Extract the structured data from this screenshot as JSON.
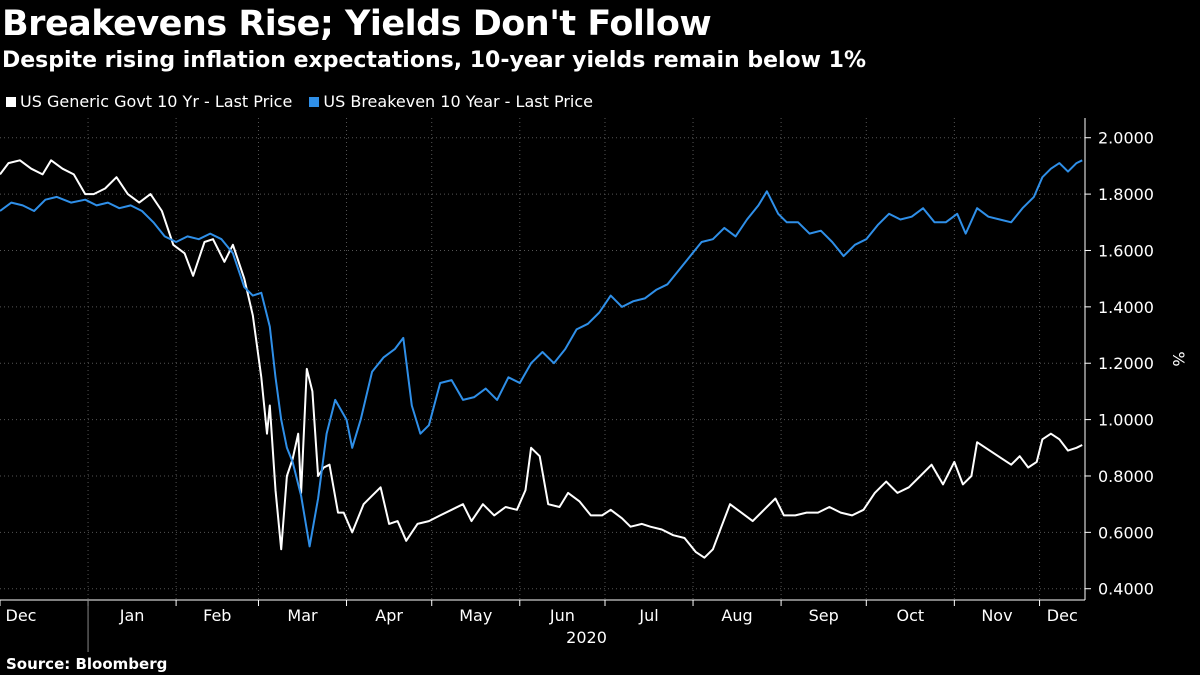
{
  "header": {
    "title": "Breakevens Rise; Yields Don't Follow",
    "subtitle": "Despite rising inflation expectations, 10-year yields remain below 1%"
  },
  "footer": {
    "source": "Source: Bloomberg"
  },
  "colors": {
    "background": "#000000",
    "yield_line": "#ffffff",
    "breakeven_line": "#2f8fe8",
    "grid": "#555555"
  },
  "chart_data": {
    "type": "line",
    "ylabel": "%",
    "ylim": [
      0.36,
      2.07
    ],
    "yticks": [
      "2.0000",
      "1.8000",
      "1.6000",
      "1.4000",
      "1.2000",
      "1.0000",
      "0.8000",
      "0.6000",
      "0.4000"
    ],
    "ytick_values": [
      2.0,
      1.8,
      1.6,
      1.4,
      1.2,
      1.0,
      0.8,
      0.6,
      0.4
    ],
    "xlim": [
      "2019-12-01",
      "2020-12-17"
    ],
    "month_labels": [
      "Dec",
      "Jan",
      "Feb",
      "Mar",
      "Apr",
      "May",
      "Jun",
      "Jul",
      "Aug",
      "Sep",
      "Oct",
      "Nov",
      "Dec"
    ],
    "month_dates": [
      "2019-12-01",
      "2020-01-01",
      "2020-02-01",
      "2020-03-01",
      "2020-04-01",
      "2020-05-01",
      "2020-06-01",
      "2020-07-01",
      "2020-08-01",
      "2020-09-01",
      "2020-10-01",
      "2020-11-01",
      "2020-12-01"
    ],
    "year_label": "2020",
    "grid": true,
    "legend_position": "top-left",
    "series": [
      {
        "name": "US Generic Govt 10 Yr - Last Price",
        "color": "#ffffff",
        "points": [
          [
            "2019-12-01",
            1.87
          ],
          [
            "2019-12-04",
            1.91
          ],
          [
            "2019-12-08",
            1.92
          ],
          [
            "2019-12-12",
            1.89
          ],
          [
            "2019-12-16",
            1.87
          ],
          [
            "2019-12-19",
            1.92
          ],
          [
            "2019-12-23",
            1.89
          ],
          [
            "2019-12-27",
            1.87
          ],
          [
            "2019-12-31",
            1.8
          ],
          [
            "2020-01-03",
            1.8
          ],
          [
            "2020-01-07",
            1.82
          ],
          [
            "2020-01-11",
            1.86
          ],
          [
            "2020-01-15",
            1.8
          ],
          [
            "2020-01-19",
            1.77
          ],
          [
            "2020-01-23",
            1.8
          ],
          [
            "2020-01-27",
            1.74
          ],
          [
            "2020-01-31",
            1.62
          ],
          [
            "2020-02-04",
            1.59
          ],
          [
            "2020-02-07",
            1.51
          ],
          [
            "2020-02-11",
            1.63
          ],
          [
            "2020-02-14",
            1.64
          ],
          [
            "2020-02-18",
            1.56
          ],
          [
            "2020-02-21",
            1.62
          ],
          [
            "2020-02-25",
            1.5
          ],
          [
            "2020-02-28",
            1.37
          ],
          [
            "2020-03-02",
            1.15
          ],
          [
            "2020-03-04",
            0.95
          ],
          [
            "2020-03-05",
            1.05
          ],
          [
            "2020-03-07",
            0.75
          ],
          [
            "2020-03-09",
            0.54
          ],
          [
            "2020-03-11",
            0.8
          ],
          [
            "2020-03-13",
            0.86
          ],
          [
            "2020-03-15",
            0.95
          ],
          [
            "2020-03-16",
            0.74
          ],
          [
            "2020-03-18",
            1.18
          ],
          [
            "2020-03-20",
            1.1
          ],
          [
            "2020-03-22",
            0.8
          ],
          [
            "2020-03-24",
            0.83
          ],
          [
            "2020-03-26",
            0.84
          ],
          [
            "2020-03-29",
            0.67
          ],
          [
            "2020-03-31",
            0.67
          ],
          [
            "2020-04-03",
            0.6
          ],
          [
            "2020-04-07",
            0.7
          ],
          [
            "2020-04-10",
            0.73
          ],
          [
            "2020-04-13",
            0.76
          ],
          [
            "2020-04-16",
            0.63
          ],
          [
            "2020-04-19",
            0.64
          ],
          [
            "2020-04-22",
            0.57
          ],
          [
            "2020-04-26",
            0.63
          ],
          [
            "2020-04-30",
            0.64
          ],
          [
            "2020-05-04",
            0.66
          ],
          [
            "2020-05-08",
            0.68
          ],
          [
            "2020-05-12",
            0.7
          ],
          [
            "2020-05-15",
            0.64
          ],
          [
            "2020-05-19",
            0.7
          ],
          [
            "2020-05-23",
            0.66
          ],
          [
            "2020-05-27",
            0.69
          ],
          [
            "2020-05-31",
            0.68
          ],
          [
            "2020-06-03",
            0.75
          ],
          [
            "2020-06-05",
            0.9
          ],
          [
            "2020-06-08",
            0.87
          ],
          [
            "2020-06-11",
            0.7
          ],
          [
            "2020-06-15",
            0.69
          ],
          [
            "2020-06-18",
            0.74
          ],
          [
            "2020-06-22",
            0.71
          ],
          [
            "2020-06-26",
            0.66
          ],
          [
            "2020-06-30",
            0.66
          ],
          [
            "2020-07-03",
            0.68
          ],
          [
            "2020-07-07",
            0.65
          ],
          [
            "2020-07-10",
            0.62
          ],
          [
            "2020-07-14",
            0.63
          ],
          [
            "2020-07-17",
            0.62
          ],
          [
            "2020-07-21",
            0.61
          ],
          [
            "2020-07-25",
            0.59
          ],
          [
            "2020-07-29",
            0.58
          ],
          [
            "2020-08-02",
            0.53
          ],
          [
            "2020-08-05",
            0.51
          ],
          [
            "2020-08-08",
            0.54
          ],
          [
            "2020-08-11",
            0.62
          ],
          [
            "2020-08-14",
            0.7
          ],
          [
            "2020-08-18",
            0.67
          ],
          [
            "2020-08-22",
            0.64
          ],
          [
            "2020-08-26",
            0.68
          ],
          [
            "2020-08-30",
            0.72
          ],
          [
            "2020-09-02",
            0.66
          ],
          [
            "2020-09-06",
            0.66
          ],
          [
            "2020-09-10",
            0.67
          ],
          [
            "2020-09-14",
            0.67
          ],
          [
            "2020-09-18",
            0.69
          ],
          [
            "2020-09-22",
            0.67
          ],
          [
            "2020-09-26",
            0.66
          ],
          [
            "2020-09-30",
            0.68
          ],
          [
            "2020-10-04",
            0.74
          ],
          [
            "2020-10-08",
            0.78
          ],
          [
            "2020-10-12",
            0.74
          ],
          [
            "2020-10-16",
            0.76
          ],
          [
            "2020-10-20",
            0.8
          ],
          [
            "2020-10-24",
            0.84
          ],
          [
            "2020-10-28",
            0.77
          ],
          [
            "2020-11-01",
            0.85
          ],
          [
            "2020-11-04",
            0.77
          ],
          [
            "2020-11-07",
            0.8
          ],
          [
            "2020-11-09",
            0.92
          ],
          [
            "2020-11-12",
            0.9
          ],
          [
            "2020-11-15",
            0.88
          ],
          [
            "2020-11-18",
            0.86
          ],
          [
            "2020-11-21",
            0.84
          ],
          [
            "2020-11-24",
            0.87
          ],
          [
            "2020-11-27",
            0.83
          ],
          [
            "2020-11-30",
            0.85
          ],
          [
            "2020-12-02",
            0.93
          ],
          [
            "2020-12-05",
            0.95
          ],
          [
            "2020-12-08",
            0.93
          ],
          [
            "2020-12-11",
            0.89
          ],
          [
            "2020-12-14",
            0.9
          ],
          [
            "2020-12-16",
            0.91
          ]
        ]
      },
      {
        "name": "US Breakeven 10 Year - Last Price",
        "color": "#2f8fe8",
        "points": [
          [
            "2019-12-01",
            1.74
          ],
          [
            "2019-12-05",
            1.77
          ],
          [
            "2019-12-09",
            1.76
          ],
          [
            "2019-12-13",
            1.74
          ],
          [
            "2019-12-17",
            1.78
          ],
          [
            "2019-12-21",
            1.79
          ],
          [
            "2019-12-26",
            1.77
          ],
          [
            "2019-12-31",
            1.78
          ],
          [
            "2020-01-04",
            1.76
          ],
          [
            "2020-01-08",
            1.77
          ],
          [
            "2020-01-12",
            1.75
          ],
          [
            "2020-01-16",
            1.76
          ],
          [
            "2020-01-20",
            1.74
          ],
          [
            "2020-01-24",
            1.7
          ],
          [
            "2020-01-28",
            1.65
          ],
          [
            "2020-02-01",
            1.63
          ],
          [
            "2020-02-05",
            1.65
          ],
          [
            "2020-02-09",
            1.64
          ],
          [
            "2020-02-13",
            1.66
          ],
          [
            "2020-02-17",
            1.64
          ],
          [
            "2020-02-21",
            1.59
          ],
          [
            "2020-02-25",
            1.47
          ],
          [
            "2020-02-28",
            1.44
          ],
          [
            "2020-03-02",
            1.45
          ],
          [
            "2020-03-05",
            1.33
          ],
          [
            "2020-03-07",
            1.15
          ],
          [
            "2020-03-09",
            1.0
          ],
          [
            "2020-03-11",
            0.9
          ],
          [
            "2020-03-13",
            0.85
          ],
          [
            "2020-03-16",
            0.73
          ],
          [
            "2020-03-19",
            0.55
          ],
          [
            "2020-03-22",
            0.72
          ],
          [
            "2020-03-25",
            0.95
          ],
          [
            "2020-03-28",
            1.07
          ],
          [
            "2020-04-01",
            1.0
          ],
          [
            "2020-04-03",
            0.9
          ],
          [
            "2020-04-06",
            1.0
          ],
          [
            "2020-04-10",
            1.17
          ],
          [
            "2020-04-14",
            1.22
          ],
          [
            "2020-04-18",
            1.25
          ],
          [
            "2020-04-21",
            1.29
          ],
          [
            "2020-04-24",
            1.05
          ],
          [
            "2020-04-27",
            0.95
          ],
          [
            "2020-04-30",
            0.98
          ],
          [
            "2020-05-04",
            1.13
          ],
          [
            "2020-05-08",
            1.14
          ],
          [
            "2020-05-12",
            1.07
          ],
          [
            "2020-05-16",
            1.08
          ],
          [
            "2020-05-20",
            1.11
          ],
          [
            "2020-05-24",
            1.07
          ],
          [
            "2020-05-28",
            1.15
          ],
          [
            "2020-06-01",
            1.13
          ],
          [
            "2020-06-05",
            1.2
          ],
          [
            "2020-06-09",
            1.24
          ],
          [
            "2020-06-13",
            1.2
          ],
          [
            "2020-06-17",
            1.25
          ],
          [
            "2020-06-21",
            1.32
          ],
          [
            "2020-06-25",
            1.34
          ],
          [
            "2020-06-29",
            1.38
          ],
          [
            "2020-07-03",
            1.44
          ],
          [
            "2020-07-07",
            1.4
          ],
          [
            "2020-07-11",
            1.42
          ],
          [
            "2020-07-15",
            1.43
          ],
          [
            "2020-07-19",
            1.46
          ],
          [
            "2020-07-23",
            1.48
          ],
          [
            "2020-07-27",
            1.53
          ],
          [
            "2020-07-31",
            1.58
          ],
          [
            "2020-08-04",
            1.63
          ],
          [
            "2020-08-08",
            1.64
          ],
          [
            "2020-08-12",
            1.68
          ],
          [
            "2020-08-16",
            1.65
          ],
          [
            "2020-08-20",
            1.71
          ],
          [
            "2020-08-24",
            1.76
          ],
          [
            "2020-08-27",
            1.81
          ],
          [
            "2020-08-31",
            1.73
          ],
          [
            "2020-09-03",
            1.7
          ],
          [
            "2020-09-07",
            1.7
          ],
          [
            "2020-09-11",
            1.66
          ],
          [
            "2020-09-15",
            1.67
          ],
          [
            "2020-09-19",
            1.63
          ],
          [
            "2020-09-23",
            1.58
          ],
          [
            "2020-09-27",
            1.62
          ],
          [
            "2020-10-01",
            1.64
          ],
          [
            "2020-10-05",
            1.69
          ],
          [
            "2020-10-09",
            1.73
          ],
          [
            "2020-10-13",
            1.71
          ],
          [
            "2020-10-17",
            1.72
          ],
          [
            "2020-10-21",
            1.75
          ],
          [
            "2020-10-25",
            1.7
          ],
          [
            "2020-10-29",
            1.7
          ],
          [
            "2020-11-02",
            1.73
          ],
          [
            "2020-11-05",
            1.66
          ],
          [
            "2020-11-09",
            1.75
          ],
          [
            "2020-11-13",
            1.72
          ],
          [
            "2020-11-17",
            1.71
          ],
          [
            "2020-11-21",
            1.7
          ],
          [
            "2020-11-25",
            1.75
          ],
          [
            "2020-11-29",
            1.79
          ],
          [
            "2020-12-02",
            1.86
          ],
          [
            "2020-12-05",
            1.89
          ],
          [
            "2020-12-08",
            1.91
          ],
          [
            "2020-12-11",
            1.88
          ],
          [
            "2020-12-14",
            1.91
          ],
          [
            "2020-12-16",
            1.92
          ]
        ]
      }
    ]
  }
}
